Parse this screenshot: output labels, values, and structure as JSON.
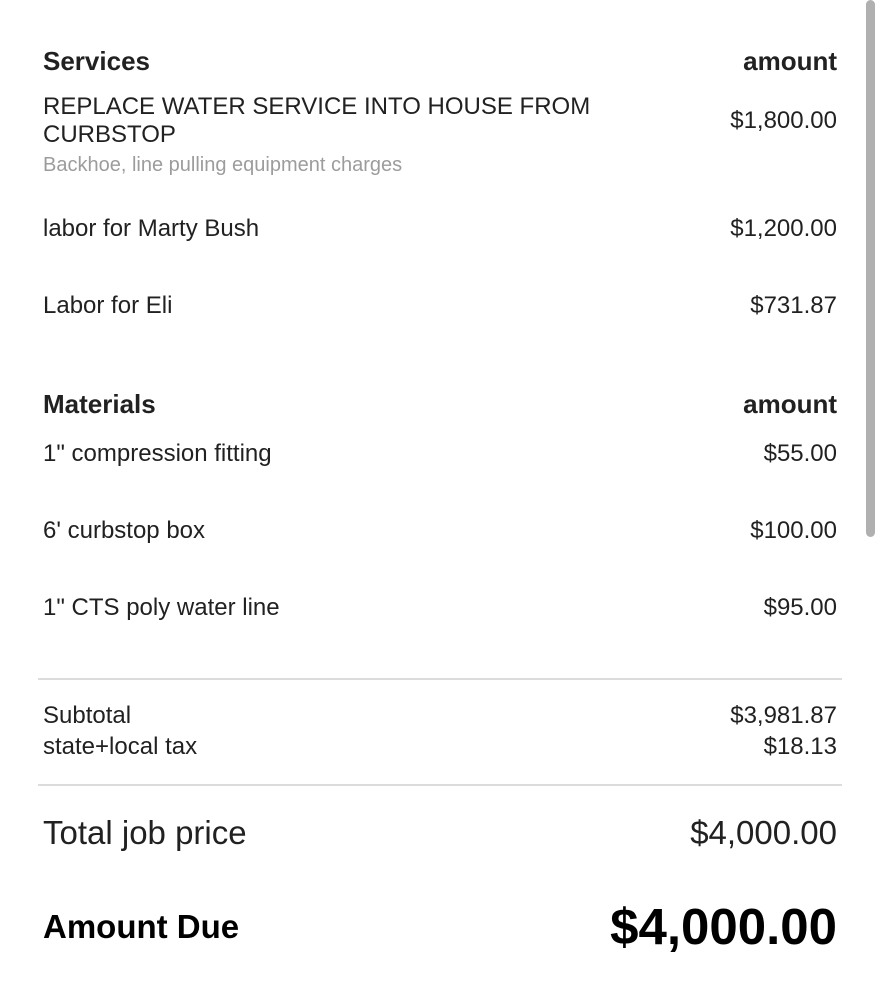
{
  "services": {
    "title": "Services",
    "amount_header": "amount",
    "items": [
      {
        "name": "REPLACE WATER SERVICE INTO HOUSE FROM CURBSTOP",
        "description": "Backhoe, line pulling equipment charges",
        "amount": "$1,800.00"
      },
      {
        "name": "labor for Marty Bush",
        "amount": "$1,200.00"
      },
      {
        "name": "Labor for Eli",
        "amount": "$731.87"
      }
    ]
  },
  "materials": {
    "title": "Materials",
    "amount_header": "amount",
    "items": [
      {
        "name": "1\" compression fitting",
        "amount": "$55.00"
      },
      {
        "name": "6' curbstop box",
        "amount": "$100.00"
      },
      {
        "name": "1\" CTS poly water line",
        "amount": "$95.00"
      }
    ]
  },
  "totals": {
    "subtotal_label": "Subtotal",
    "subtotal_value": "$3,981.87",
    "tax_label": "state+local tax",
    "tax_value": "$18.13",
    "total_label": "Total job price",
    "total_value": "$4,000.00",
    "amount_due_label": "Amount Due",
    "amount_due_value": "$4,000.00"
  },
  "colors": {
    "text": "#212121",
    "muted_text": "#9c9c9c",
    "divider": "#dcdcdc",
    "scrollbar": "#b0b0b0"
  }
}
